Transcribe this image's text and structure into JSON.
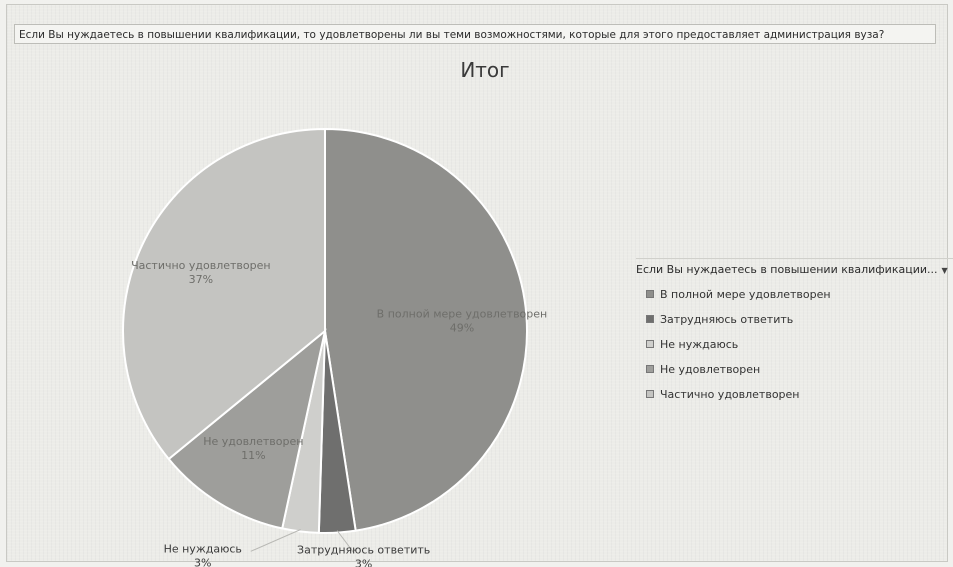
{
  "question": "Если Вы нуждаетесь в повышении квалификации, то удовлетворены ли вы теми  возможностями, которые для этого предоставляет администрация вуза?",
  "chart_data": {
    "type": "pie",
    "title": "Итог",
    "legend": {
      "title": "Если Вы нуждаетесь в повышении квалификации...",
      "placement": "right",
      "dropdown_icon": "caret-down-icon"
    },
    "slices": [
      {
        "label": "В полной мере удовлетворен",
        "value": 49,
        "label_text": "49%",
        "color": "#8f8f8c"
      },
      {
        "label": "Затрудняюсь ответить",
        "value": 3,
        "label_text": "3%",
        "color": "#6f6f6e"
      },
      {
        "label": "Не нуждаюсь",
        "value": 3,
        "label_text": "3%",
        "color": "#cfcfcc"
      },
      {
        "label": "Не удовлетворен",
        "value": 11,
        "label_text": "11%",
        "color": "#9e9e9b"
      },
      {
        "label": "Частично удовлетворен",
        "value": 37,
        "label_text": "37%",
        "color": "#c4c4c1"
      }
    ]
  }
}
